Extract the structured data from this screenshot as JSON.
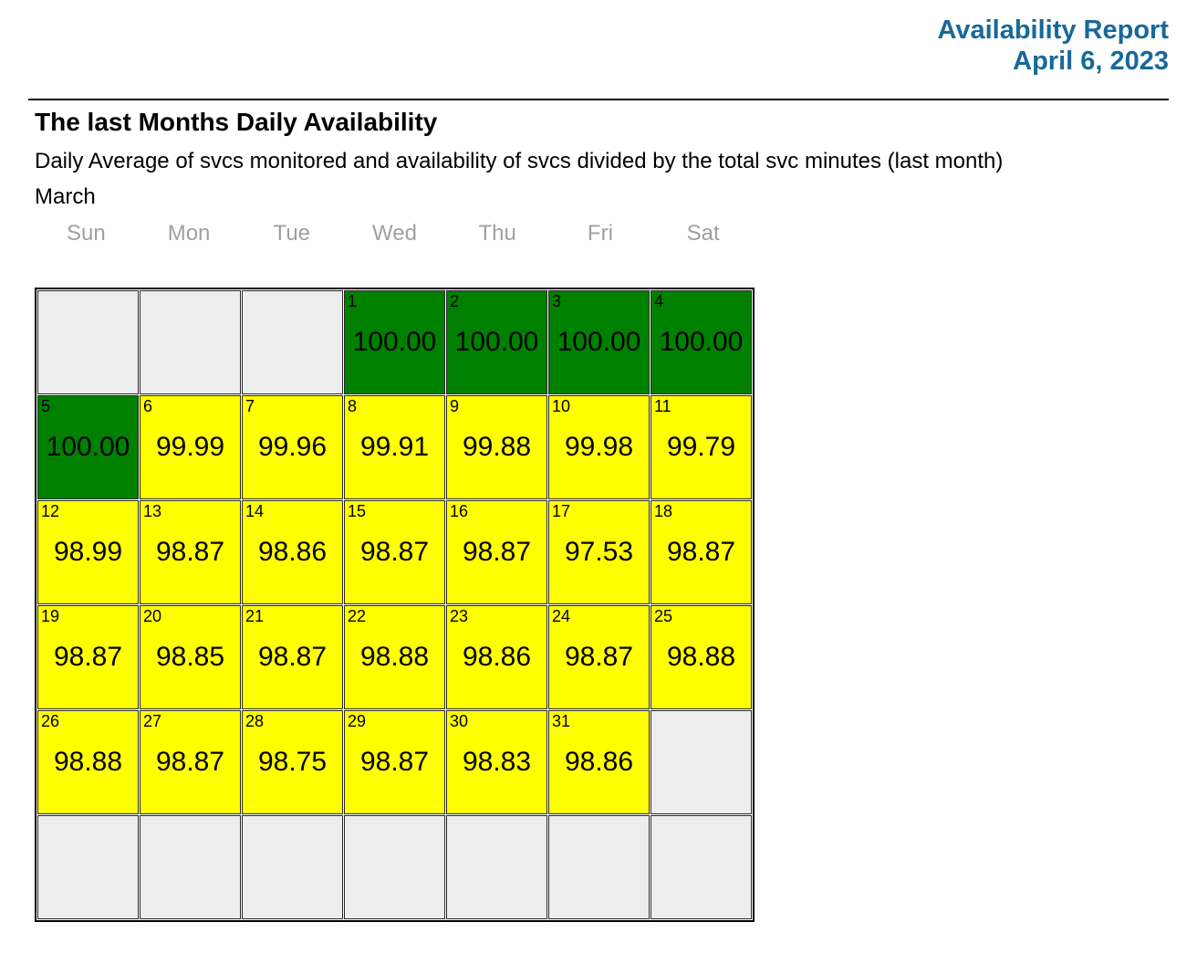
{
  "colors": {
    "accent": "#17689b",
    "green": "#008000",
    "yellow": "#ffff00",
    "empty": "#ededed",
    "weekday_gray": "#a0a0a0"
  },
  "header": {
    "title": "Availability Report",
    "date": "April 6, 2023"
  },
  "section": {
    "heading": "The last Months Daily Availability",
    "subtitle": "Daily Average of svcs monitored and availability of svcs divided by the total svc minutes (last month)",
    "month": "March"
  },
  "calendar": {
    "weekdays": [
      "Sun",
      "Mon",
      "Tue",
      "Wed",
      "Thu",
      "Fri",
      "Sat"
    ],
    "weeks": [
      [
        {
          "type": "empty"
        },
        {
          "type": "empty"
        },
        {
          "type": "empty"
        },
        {
          "day": "1",
          "value": "100.00",
          "type": "green"
        },
        {
          "day": "2",
          "value": "100.00",
          "type": "green"
        },
        {
          "day": "3",
          "value": "100.00",
          "type": "green"
        },
        {
          "day": "4",
          "value": "100.00",
          "type": "green"
        }
      ],
      [
        {
          "day": "5",
          "value": "100.00",
          "type": "green"
        },
        {
          "day": "6",
          "value": "99.99",
          "type": "yellow"
        },
        {
          "day": "7",
          "value": "99.96",
          "type": "yellow"
        },
        {
          "day": "8",
          "value": "99.91",
          "type": "yellow"
        },
        {
          "day": "9",
          "value": "99.88",
          "type": "yellow"
        },
        {
          "day": "10",
          "value": "99.98",
          "type": "yellow"
        },
        {
          "day": "11",
          "value": "99.79",
          "type": "yellow"
        }
      ],
      [
        {
          "day": "12",
          "value": "98.99",
          "type": "yellow"
        },
        {
          "day": "13",
          "value": "98.87",
          "type": "yellow"
        },
        {
          "day": "14",
          "value": "98.86",
          "type": "yellow"
        },
        {
          "day": "15",
          "value": "98.87",
          "type": "yellow"
        },
        {
          "day": "16",
          "value": "98.87",
          "type": "yellow"
        },
        {
          "day": "17",
          "value": "97.53",
          "type": "yellow"
        },
        {
          "day": "18",
          "value": "98.87",
          "type": "yellow"
        }
      ],
      [
        {
          "day": "19",
          "value": "98.87",
          "type": "yellow"
        },
        {
          "day": "20",
          "value": "98.85",
          "type": "yellow"
        },
        {
          "day": "21",
          "value": "98.87",
          "type": "yellow"
        },
        {
          "day": "22",
          "value": "98.88",
          "type": "yellow"
        },
        {
          "day": "23",
          "value": "98.86",
          "type": "yellow"
        },
        {
          "day": "24",
          "value": "98.87",
          "type": "yellow"
        },
        {
          "day": "25",
          "value": "98.88",
          "type": "yellow"
        }
      ],
      [
        {
          "day": "26",
          "value": "98.88",
          "type": "yellow"
        },
        {
          "day": "27",
          "value": "98.87",
          "type": "yellow"
        },
        {
          "day": "28",
          "value": "98.75",
          "type": "yellow"
        },
        {
          "day": "29",
          "value": "98.87",
          "type": "yellow"
        },
        {
          "day": "30",
          "value": "98.83",
          "type": "yellow"
        },
        {
          "day": "31",
          "value": "98.86",
          "type": "yellow"
        },
        {
          "type": "empty"
        }
      ],
      [
        {
          "type": "empty"
        },
        {
          "type": "empty"
        },
        {
          "type": "empty"
        },
        {
          "type": "empty"
        },
        {
          "type": "empty"
        },
        {
          "type": "empty"
        },
        {
          "type": "empty"
        }
      ]
    ]
  },
  "chart_data": {
    "type": "heatmap",
    "title": "The last Months Daily Availability",
    "subtitle": "Daily Average of svcs monitored and availability of svcs divided by the total svc minutes (last month)",
    "month": "March",
    "weekday_columns": [
      "Sun",
      "Mon",
      "Tue",
      "Wed",
      "Thu",
      "Fri",
      "Sat"
    ],
    "first_day_column": "Wed",
    "days": [
      1,
      2,
      3,
      4,
      5,
      6,
      7,
      8,
      9,
      10,
      11,
      12,
      13,
      14,
      15,
      16,
      17,
      18,
      19,
      20,
      21,
      22,
      23,
      24,
      25,
      26,
      27,
      28,
      29,
      30,
      31
    ],
    "values": [
      100.0,
      100.0,
      100.0,
      100.0,
      100.0,
      99.99,
      99.96,
      99.91,
      99.88,
      99.98,
      99.79,
      98.99,
      98.87,
      98.86,
      98.87,
      98.87,
      97.53,
      98.87,
      98.87,
      98.85,
      98.87,
      98.88,
      98.86,
      98.87,
      98.88,
      98.88,
      98.87,
      98.75,
      98.87,
      98.83,
      98.86
    ],
    "color_rule": {
      "green_at": 100.0,
      "yellow_below": 100.0,
      "green_hex": "#008000",
      "yellow_hex": "#ffff00"
    }
  }
}
